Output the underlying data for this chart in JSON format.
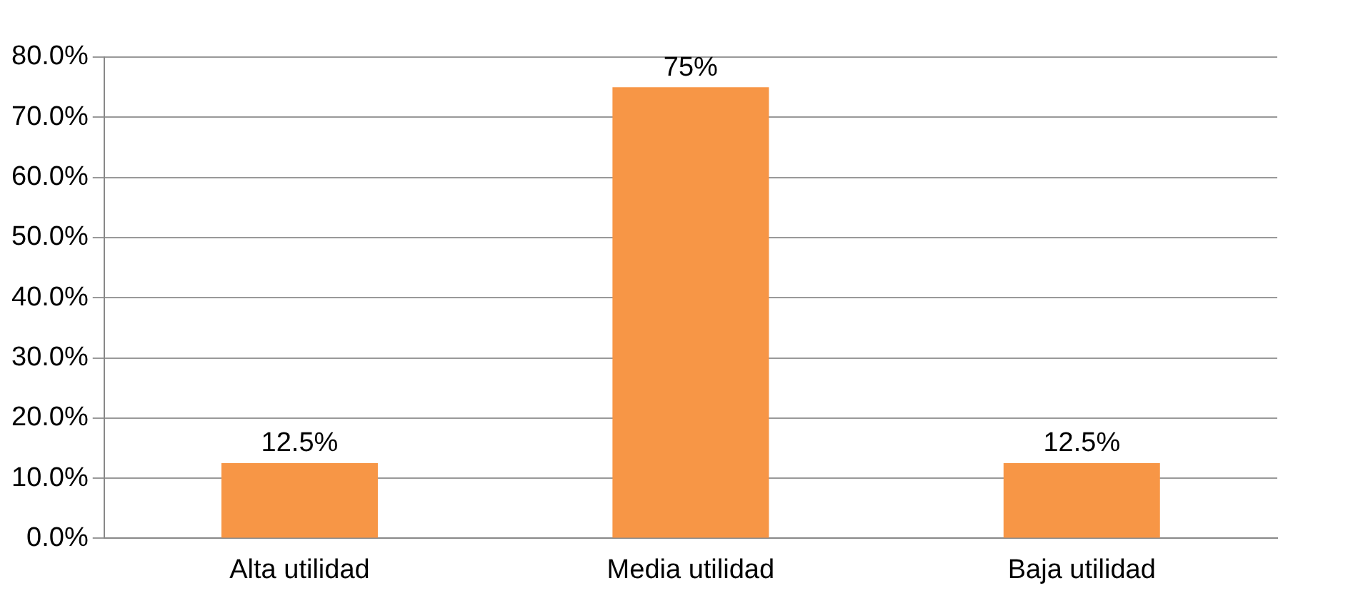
{
  "chart_data": {
    "type": "bar",
    "categories": [
      "Alta utilidad",
      "Media utilidad",
      "Baja utilidad"
    ],
    "values": [
      12.5,
      75,
      12.5
    ],
    "color": "#f79646",
    "value_labels": [
      "12.5%",
      "75%",
      "12.5%"
    ],
    "ylim": [
      0,
      80
    ],
    "yticks": [
      {
        "value": 0,
        "label": "0.0%"
      },
      {
        "value": 10,
        "label": "10.0%"
      },
      {
        "value": 20,
        "label": "20.0%"
      },
      {
        "value": 30,
        "label": "30.0%"
      },
      {
        "value": 40,
        "label": "40.0%"
      },
      {
        "value": 50,
        "label": "50.0%"
      },
      {
        "value": 60,
        "label": "60.0%"
      },
      {
        "value": 70,
        "label": "70.0%"
      },
      {
        "value": 80,
        "label": "80.0%"
      }
    ],
    "grid": "y",
    "legend": false
  }
}
